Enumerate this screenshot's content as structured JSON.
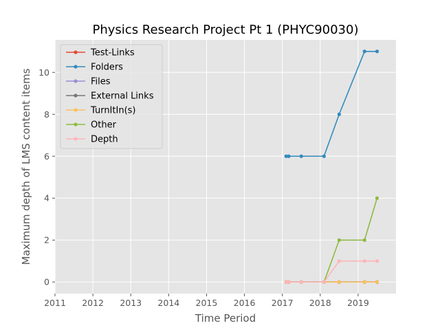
{
  "chart_data": {
    "type": "line",
    "title": "Physics Research Project Pt 1 (PHYC90030)",
    "xlabel": "Time Period",
    "ylabel": "Maximum depth of LMS content items",
    "xlim": [
      2011,
      2020
    ],
    "ylim": [
      -0.55,
      11.55
    ],
    "xticks": [
      2011,
      2012,
      2013,
      2014,
      2015,
      2016,
      2017,
      2018,
      2019
    ],
    "yticks": [
      0,
      2,
      4,
      6,
      8,
      10
    ],
    "grid": true,
    "legend_position": "upper-left",
    "x": [
      2017.1,
      2017.17,
      2017.5,
      2018.1,
      2018.5,
      2019.17,
      2019.5
    ],
    "series": [
      {
        "name": "Test-Links",
        "color": "#E24A33",
        "values": [
          0,
          0,
          0,
          0,
          0,
          0,
          0
        ]
      },
      {
        "name": "Folders",
        "color": "#348ABD",
        "values": [
          6,
          6,
          6,
          6,
          8,
          11,
          11
        ]
      },
      {
        "name": "Files",
        "color": "#988ED5",
        "values": [
          0,
          0,
          0,
          0,
          0,
          0,
          0
        ]
      },
      {
        "name": "External Links",
        "color": "#777777",
        "values": [
          0,
          0,
          0,
          0,
          0,
          0,
          0
        ]
      },
      {
        "name": "TurnItIn(s)",
        "color": "#FBC15E",
        "values": [
          0,
          0,
          0,
          0,
          0,
          0,
          0
        ]
      },
      {
        "name": "Other",
        "color": "#8EBA42",
        "values": [
          0,
          0,
          0,
          0,
          2,
          2,
          4
        ]
      },
      {
        "name": "Depth",
        "color": "#FFB5B8",
        "values": [
          0,
          0,
          0,
          0,
          1,
          1,
          1
        ]
      }
    ]
  }
}
